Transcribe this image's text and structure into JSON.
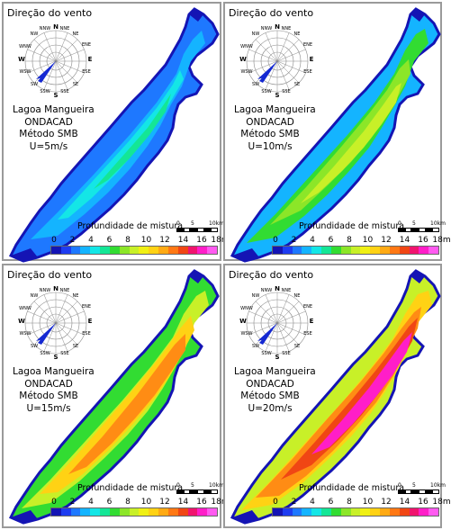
{
  "figure": {
    "panels": [
      {
        "id": "p5",
        "title": "Direção do vento",
        "location": "Lagoa Mangueira",
        "model": "ONDACAD",
        "method": "Método SMB",
        "wind": "U=5m/s",
        "legend_title": "Profundidade de mistura",
        "scale": {
          "labels": [
            "0",
            "5",
            "10km"
          ]
        },
        "palette_stage": 1
      },
      {
        "id": "p10",
        "title": "Direção do vento",
        "location": "Lagoa Mangueira",
        "model": "ONDACAD",
        "method": "Método SMB",
        "wind": "U=10m/s",
        "legend_title": "Profundidade de mistura",
        "scale": {
          "labels": [
            "0",
            "5",
            "10km"
          ]
        },
        "palette_stage": 2
      },
      {
        "id": "p15",
        "title": "Direção do vento",
        "location": "Lagoa Mangueira",
        "model": "ONDACAD",
        "method": "Método SMB",
        "wind": "U=15m/s",
        "legend_title": "Profundidade de mistura",
        "scale": {
          "labels": [
            "0",
            "5",
            "10km"
          ]
        },
        "palette_stage": 3
      },
      {
        "id": "p20",
        "title": "Direção do vento",
        "location": "Lagoa Mangueira",
        "model": "ONDACAD",
        "method": "Método SMB",
        "wind": "U=20m/s",
        "legend_title": "Profundidade de mistura",
        "scale": {
          "labels": [
            "0",
            "5",
            "10km"
          ]
        },
        "palette_stage": 4
      }
    ],
    "compass": [
      "N",
      "NNE",
      "NE",
      "ENE",
      "E",
      "ESE",
      "SE",
      "SSE",
      "S",
      "SSW",
      "SW",
      "WSW",
      "W",
      "WNW",
      "NW",
      "NNW"
    ],
    "legend_ticks": [
      "0",
      "2",
      "4",
      "6",
      "8",
      "10",
      "12",
      "14",
      "16",
      "18m"
    ],
    "colorbar_colors": [
      "#1414b4",
      "#1e3cf0",
      "#1e78ff",
      "#14b4ff",
      "#14e6e6",
      "#14e696",
      "#32dc32",
      "#8ce628",
      "#c8f028",
      "#f0f014",
      "#ffd214",
      "#ffaa14",
      "#ff7814",
      "#f04614",
      "#f0146e",
      "#ff1ec8",
      "#ff5af0"
    ],
    "colors": {
      "deep_blue": "#1414b4",
      "cyan": "#14d2ff",
      "green": "#32dc32",
      "yellow": "#f0f014",
      "orange": "#ff8c14",
      "magenta": "#ff1ec8",
      "wind_arrow": "#1428d2"
    }
  }
}
